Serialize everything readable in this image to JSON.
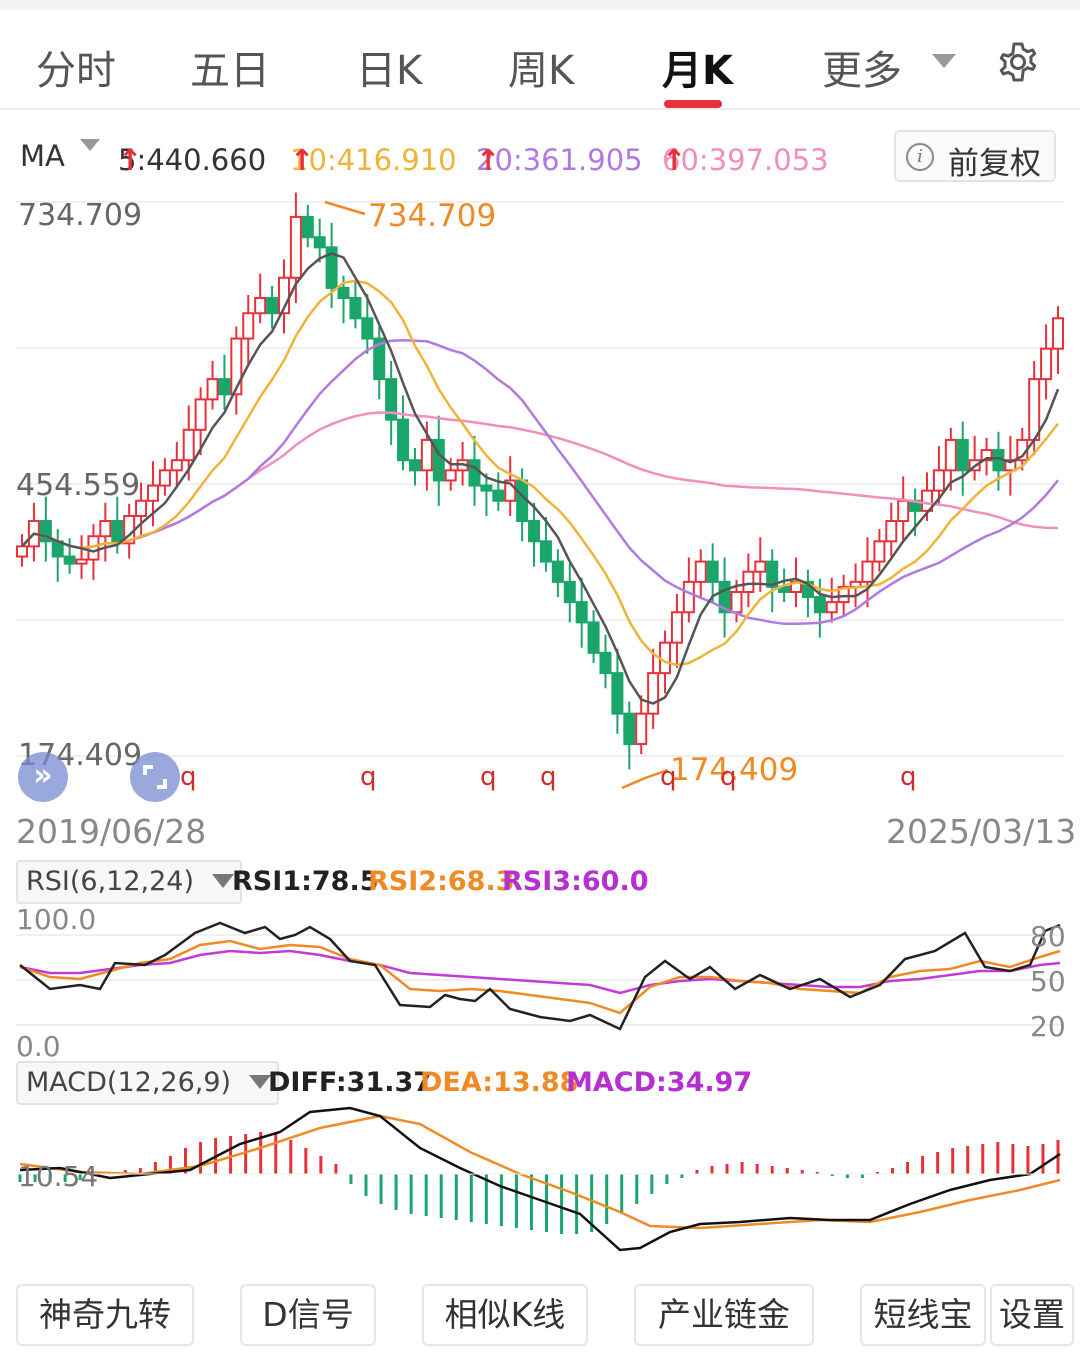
{
  "tabs": {
    "items": [
      {
        "label": "分时"
      },
      {
        "label": "五日"
      },
      {
        "label": "日K"
      },
      {
        "label": "周K"
      },
      {
        "label": "月K"
      }
    ],
    "active": "月K",
    "more_label": "更多"
  },
  "ma": {
    "label": "MA",
    "ma5": "5:440.660",
    "ma10": "10:416.910",
    "ma20": "20:361.905",
    "ma60": "60:397.053",
    "up_arrow": "↑",
    "colors": {
      "ma5": "#333333",
      "ma10": "#f0b33a",
      "ma20": "#b07ae0",
      "ma60": "#f08fbf"
    }
  },
  "adjust_button": {
    "icon": "info-icon",
    "label": "前复权",
    "info_glyph": "i"
  },
  "price_axis": {
    "high": "734.709",
    "mid": "454.559",
    "low": "174.409"
  },
  "extremes": {
    "high_label": "734.709",
    "low_label": "174.409"
  },
  "markers": {
    "q": "q"
  },
  "dates": {
    "start": "2019/06/28",
    "end": "2025/03/13"
  },
  "rsi": {
    "selector": "RSI(6,12,24)",
    "rsi1": "RSI1:78.5",
    "rsi2": "RSI2:68.3",
    "rsi3": "RSI3:60.0",
    "axis_top": "100.0",
    "axis_bottom": "0.0",
    "levels": [
      "80",
      "50",
      "20"
    ]
  },
  "macd": {
    "selector": "MACD(12,26,9)",
    "diff": "DIFF:31.37",
    "dea": "DEA:13.88",
    "macd": "MACD:34.97",
    "axis_label": "10.54"
  },
  "fab_icons": [
    "double-chevron-right-icon",
    "expand-icon"
  ],
  "bottom_buttons": [
    {
      "label": "神奇九转"
    },
    {
      "label": "D信号"
    },
    {
      "label": "相似K线"
    },
    {
      "label": "产业链金"
    },
    {
      "label": "短线宝"
    },
    {
      "label": "设置"
    }
  ],
  "colors": {
    "up": "#e8303a",
    "down": "#1aa66b",
    "accent": "#e8303a"
  }
}
